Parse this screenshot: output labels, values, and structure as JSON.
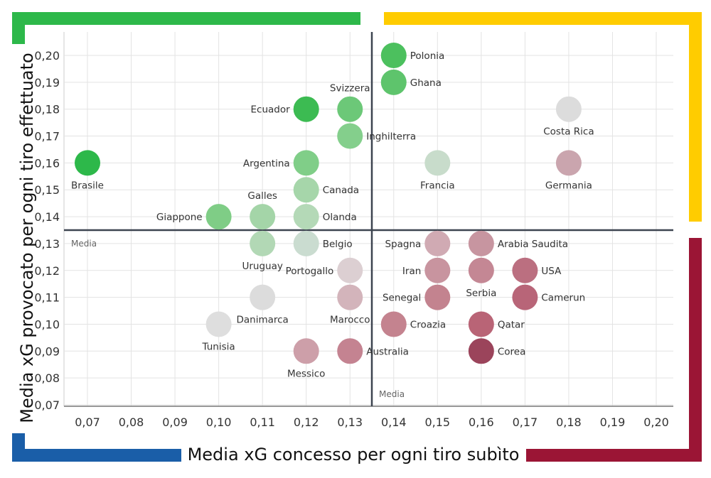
{
  "chart_data": {
    "type": "scatter",
    "xlabel": "Media xG concesso per ogni tiro subìto",
    "ylabel": "Media xG provocato per ogni tiro effettuato",
    "xlim": [
      0.07,
      0.2
    ],
    "ylim": [
      0.07,
      0.2
    ],
    "x_ticks": [
      "0,07",
      "0,08",
      "0,09",
      "0,10",
      "0,11",
      "0,12",
      "0,13",
      "0,14",
      "0,15",
      "0,16",
      "0,17",
      "0,18",
      "0,19",
      "0,20"
    ],
    "y_ticks": [
      "0,20",
      "0,19",
      "0,18",
      "0,17",
      "0,16",
      "0,15",
      "0,14",
      "0,13",
      "0,12",
      "0,11",
      "0,10",
      "0,09",
      "0,08",
      "0,07"
    ],
    "grid": true,
    "mean_lines": {
      "x": 0.135,
      "y": 0.135,
      "x_label": "Media",
      "y_label": "Media"
    },
    "quadrant_colors": {
      "top_left": "#2db84a",
      "top_right": "#ffcc00",
      "bottom_right": "#9b1535",
      "bottom_left": "#1a5ea8"
    },
    "points": [
      {
        "name": "Polonia",
        "x": 0.14,
        "y": 0.2,
        "color": "#4cc05e"
      },
      {
        "name": "Ghana",
        "x": 0.14,
        "y": 0.19,
        "color": "#5ec46c"
      },
      {
        "name": "Svizzera",
        "x": 0.13,
        "y": 0.18,
        "color": "#6cc878"
      },
      {
        "name": "Ecuador",
        "x": 0.12,
        "y": 0.18,
        "color": "#3cbb52"
      },
      {
        "name": "Costa Rica",
        "x": 0.18,
        "y": 0.18,
        "color": "#dcdcdc"
      },
      {
        "name": "Inghilterra",
        "x": 0.13,
        "y": 0.17,
        "color": "#84cf8c"
      },
      {
        "name": "Brasile",
        "x": 0.07,
        "y": 0.16,
        "color": "#2db84a"
      },
      {
        "name": "Argentina",
        "x": 0.12,
        "y": 0.16,
        "color": "#80ce88"
      },
      {
        "name": "Francia",
        "x": 0.15,
        "y": 0.16,
        "color": "#c8dccb"
      },
      {
        "name": "Germania",
        "x": 0.18,
        "y": 0.16,
        "color": "#caa5ae"
      },
      {
        "name": "Canada",
        "x": 0.12,
        "y": 0.15,
        "color": "#a6d6aa"
      },
      {
        "name": "Giappone",
        "x": 0.1,
        "y": 0.14,
        "color": "#7fcd86"
      },
      {
        "name": "Galles",
        "x": 0.11,
        "y": 0.14,
        "color": "#a4d5a8"
      },
      {
        "name": "Olanda",
        "x": 0.12,
        "y": 0.14,
        "color": "#b4d9b7"
      },
      {
        "name": "Uruguay",
        "x": 0.11,
        "y": 0.13,
        "color": "#b2d8b5"
      },
      {
        "name": "Belgio",
        "x": 0.12,
        "y": 0.13,
        "color": "#cadcd0"
      },
      {
        "name": "Spagna",
        "x": 0.15,
        "y": 0.13,
        "color": "#d0aab3"
      },
      {
        "name": "Arabia Saudita",
        "x": 0.16,
        "y": 0.13,
        "color": "#c795a0"
      },
      {
        "name": "Portogallo",
        "x": 0.13,
        "y": 0.12,
        "color": "#dccfd2"
      },
      {
        "name": "Iran",
        "x": 0.15,
        "y": 0.12,
        "color": "#c8949f"
      },
      {
        "name": "Serbia",
        "x": 0.16,
        "y": 0.12,
        "color": "#c48794"
      },
      {
        "name": "USA",
        "x": 0.17,
        "y": 0.12,
        "color": "#bb6f80"
      },
      {
        "name": "Danimarca",
        "x": 0.11,
        "y": 0.11,
        "color": "#dcdcdc"
      },
      {
        "name": "Marocco",
        "x": 0.13,
        "y": 0.11,
        "color": "#d3b4bb"
      },
      {
        "name": "Senegal",
        "x": 0.15,
        "y": 0.11,
        "color": "#c3838f"
      },
      {
        "name": "Camerun",
        "x": 0.17,
        "y": 0.11,
        "color": "#b86578"
      },
      {
        "name": "Tunisia",
        "x": 0.1,
        "y": 0.1,
        "color": "#dedede"
      },
      {
        "name": "Croazia",
        "x": 0.14,
        "y": 0.1,
        "color": "#c4838f"
      },
      {
        "name": "Qatar",
        "x": 0.16,
        "y": 0.1,
        "color": "#b96476"
      },
      {
        "name": "Messico",
        "x": 0.12,
        "y": 0.09,
        "color": "#cd9fa9"
      },
      {
        "name": "Australia",
        "x": 0.13,
        "y": 0.09,
        "color": "#c48391"
      },
      {
        "name": "Corea",
        "x": 0.16,
        "y": 0.09,
        "color": "#9b445b"
      }
    ]
  }
}
